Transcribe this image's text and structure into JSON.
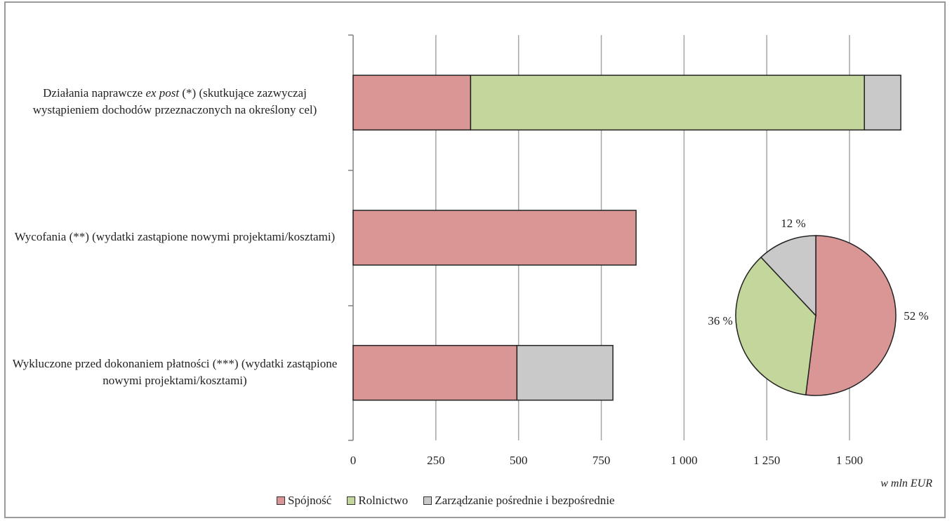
{
  "chart_data": [
    {
      "type": "bar",
      "orientation": "horizontal",
      "stacked": true,
      "categories": [
        {
          "pre": "Działania naprawcze ",
          "italic": "ex post",
          "post": " (*) (skutkujące zazwyczaj wystąpieniem dochodów przeznaczonych na określony cel)"
        },
        {
          "pre": "Wycofania (**) (wydatki zastąpione nowymi projektami/kosztami)",
          "italic": "",
          "post": ""
        },
        {
          "pre": "Wykluczone przed dokonaniem płatności (***) (wydatki zastąpione nowymi projektami/kosztami)",
          "italic": "",
          "post": ""
        }
      ],
      "series": [
        {
          "name": "Spójność",
          "color": "#d99694",
          "values": [
            355,
            855,
            495
          ]
        },
        {
          "name": "Rolnictwo",
          "color": "#c3d69b",
          "values": [
            1190,
            0,
            0
          ]
        },
        {
          "name": "Zarządzanie pośrednie i bezpośrednie",
          "color": "#c9c9c9",
          "values": [
            110,
            0,
            290
          ]
        }
      ],
      "xlim": [
        0,
        1650
      ],
      "x_ticks": [
        0,
        250,
        500,
        750,
        1000,
        1250,
        1500
      ],
      "x_tick_labels": [
        "0",
        "250",
        "500",
        "750",
        "1 000",
        "1 250",
        "1 500"
      ],
      "grid": true,
      "unit_label": "w mln EUR",
      "legend_position": "bottom"
    },
    {
      "type": "pie",
      "slices": [
        {
          "name": "Spójność",
          "value": 52,
          "label": "52 %",
          "color": "#d99694"
        },
        {
          "name": "Rolnictwo",
          "value": 36,
          "label": "36 %",
          "color": "#c3d69b"
        },
        {
          "name": "Zarządzanie pośrednie i bezpośrednie",
          "value": 12,
          "label": "12 %",
          "color": "#c9c9c9"
        }
      ]
    }
  ]
}
